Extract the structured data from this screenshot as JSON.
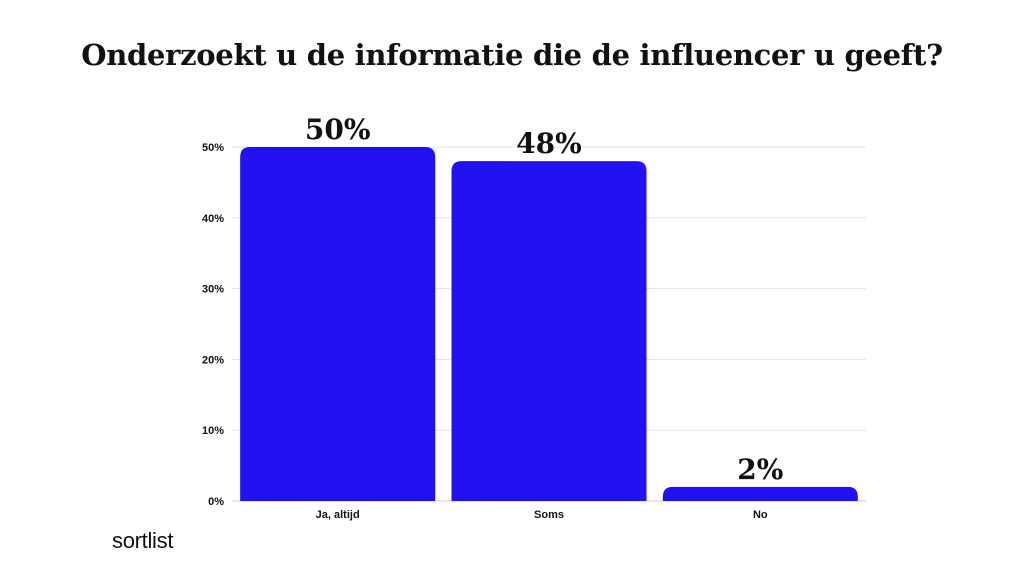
{
  "title": "Onderzoekt u de informatie die de influencer u geeft?",
  "brand": "sortlist",
  "colors": {
    "bar": "#2212f2",
    "grid": "#e5e5e5",
    "text": "#111111"
  },
  "chart_data": {
    "type": "bar",
    "title": "Onderzoekt u de informatie die de influencer u geeft?",
    "categories": [
      "Ja, altijd",
      "Soms",
      "No"
    ],
    "values": [
      50,
      48,
      2
    ],
    "data_labels": [
      "50%",
      "48%",
      "2%"
    ],
    "ylim": [
      0,
      50
    ],
    "yticks": [
      0,
      10,
      20,
      30,
      40,
      50
    ],
    "ytick_labels": [
      "0%",
      "10%",
      "20%",
      "30%",
      "40%",
      "50%"
    ],
    "xlabel": "",
    "ylabel": "",
    "grid": true
  }
}
